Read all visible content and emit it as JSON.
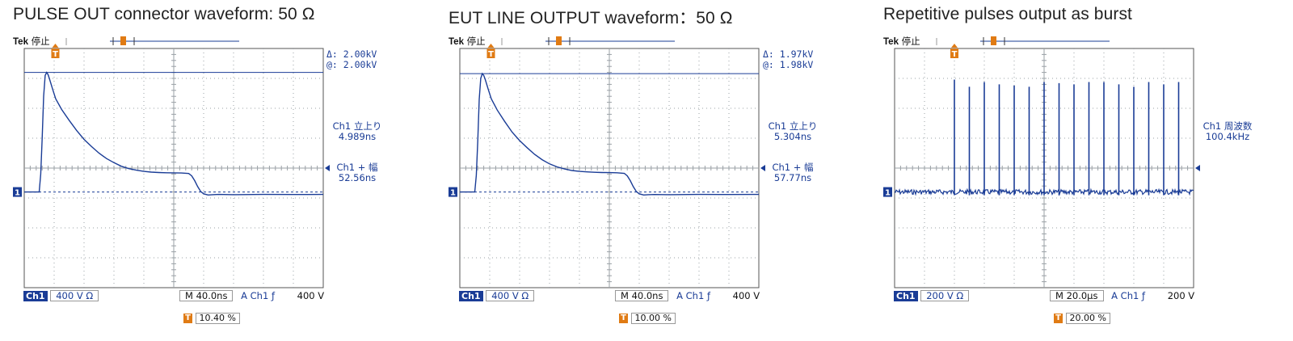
{
  "panels": [
    {
      "title": "PULSE OUT connector waveform: 50 Ω",
      "tek_label": "Tek",
      "status": "停止",
      "cursor_readout": {
        "delta": "Δ:   2.00kV",
        "at": "@:   2.00kV"
      },
      "measurements": [
        {
          "label": "Ch1 立上り",
          "value": "4.989ns"
        },
        {
          "label": "Ch1 + 幅",
          "value": "52.56ns"
        }
      ],
      "channel": "Ch1",
      "volts_div": "400 V  Ω",
      "timebase": "M 40.0ns",
      "trigger_source": "A  Ch1  ƒ",
      "trigger_level": "400 V",
      "trigger_position": "10.40 %",
      "ground_marker": "1"
    },
    {
      "title": "EUT LINE OUTPUT waveform：50 Ω",
      "tek_label": "Tek",
      "status": "停止",
      "cursor_readout": {
        "delta": "Δ:   1.97kV",
        "at": "@:   1.98kV"
      },
      "measurements": [
        {
          "label": "Ch1 立上り",
          "value": "5.304ns"
        },
        {
          "label": "Ch1 + 幅",
          "value": "57.77ns"
        }
      ],
      "channel": "Ch1",
      "volts_div": "400 V  Ω",
      "timebase": "M 40.0ns",
      "trigger_source": "A  Ch1  ƒ",
      "trigger_level": "400 V",
      "trigger_position": "10.00 %",
      "ground_marker": "1"
    },
    {
      "title": "Repetitive pulses output as burst",
      "tek_label": "Tek",
      "status": "停止",
      "cursor_readout": {
        "delta": "",
        "at": ""
      },
      "measurements": [
        {
          "label": "Ch1 周波数",
          "value": "100.4kHz"
        }
      ],
      "channel": "Ch1",
      "volts_div": "200 V  Ω",
      "timebase": "M 20.0μs",
      "trigger_source": "A  Ch1  ƒ",
      "trigger_level": "200 V",
      "trigger_position": "20.00 %",
      "ground_marker": "1"
    }
  ],
  "colors": {
    "trace": "#1a3c96",
    "grid": "#9aa0a6",
    "trigger": "#e07b14",
    "title": "#222222"
  },
  "chart_data": [
    {
      "type": "line",
      "title": "PULSE OUT connector waveform: 50 Ω",
      "xlabel": "",
      "ylabel": "",
      "x_unit": "ns",
      "y_unit": "V",
      "xlim": [
        -20,
        380
      ],
      "ylim": [
        -1600,
        2400
      ],
      "grid": true,
      "cursor_level_v": 2000,
      "series": [
        {
          "x": [
            -20,
            0,
            2,
            4,
            6,
            8,
            10,
            12,
            14,
            18,
            22,
            30,
            40,
            50,
            60,
            70,
            80,
            90,
            100,
            110,
            120,
            130,
            140,
            150,
            160,
            170,
            180,
            190,
            200,
            204,
            208,
            212,
            216,
            220,
            226,
            232,
            240,
            260,
            300,
            340,
            380
          ],
          "y": [
            0,
            0,
            300,
            900,
            1600,
            1950,
            2000,
            1960,
            1880,
            1720,
            1560,
            1380,
            1200,
            1030,
            880,
            760,
            650,
            560,
            490,
            430,
            390,
            365,
            345,
            332,
            325,
            322,
            320,
            318,
            310,
            270,
            190,
            90,
            10,
            -30,
            -50,
            -45,
            -40,
            -45,
            -40,
            -42,
            -40
          ]
        }
      ]
    },
    {
      "type": "line",
      "title": "EUT LINE OUTPUT waveform：50 Ω",
      "xlabel": "",
      "ylabel": "",
      "x_unit": "ns",
      "y_unit": "V",
      "xlim": [
        -20,
        380
      ],
      "ylim": [
        -1600,
        2400
      ],
      "grid": true,
      "cursor_level_v": 1980,
      "series": [
        {
          "x": [
            -20,
            0,
            2,
            4,
            6,
            8,
            10,
            12,
            14,
            18,
            22,
            30,
            40,
            50,
            60,
            70,
            80,
            90,
            100,
            110,
            120,
            130,
            140,
            150,
            160,
            170,
            180,
            190,
            200,
            204,
            208,
            212,
            216,
            220,
            226,
            232,
            240,
            260,
            300,
            340,
            380
          ],
          "y": [
            0,
            0,
            280,
            850,
            1550,
            1900,
            1980,
            1950,
            1880,
            1720,
            1560,
            1370,
            1180,
            1000,
            860,
            740,
            630,
            540,
            470,
            420,
            385,
            360,
            345,
            336,
            330,
            326,
            324,
            322,
            312,
            270,
            190,
            90,
            10,
            -30,
            -50,
            -45,
            -42,
            -44,
            -40,
            -42,
            -40
          ]
        }
      ]
    },
    {
      "type": "line",
      "title": "Repetitive pulses output as burst",
      "xlabel": "",
      "ylabel": "",
      "x_unit": "μs",
      "y_unit": "V",
      "xlim": [
        -40,
        160
      ],
      "ylim": [
        -800,
        1200
      ],
      "grid": true,
      "frequency_khz": 100.4,
      "pulses": {
        "t_us": [
          0,
          10,
          20,
          30,
          40,
          50,
          60,
          70,
          80,
          90,
          100,
          110,
          120,
          130,
          140,
          150
        ],
        "peak_v": [
          940,
          880,
          920,
          900,
          890,
          880,
          920,
          910,
          900,
          920,
          920,
          900,
          880,
          920,
          900,
          920
        ]
      },
      "baseline_v": 0
    }
  ]
}
